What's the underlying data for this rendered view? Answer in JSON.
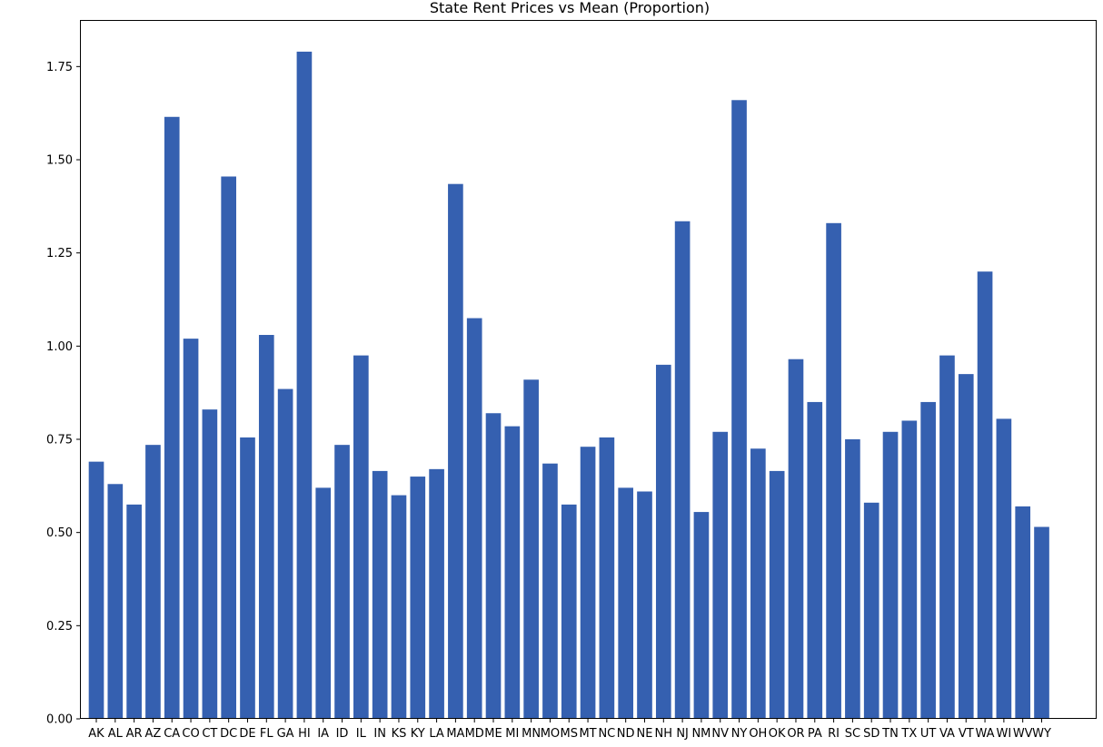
{
  "chart_data": {
    "type": "bar",
    "title": "State Rent Prices vs Mean (Proportion)",
    "xlabel": "",
    "ylabel": "",
    "ylim": [
      0,
      1.875
    ],
    "yticks": [
      "0.00",
      "0.25",
      "0.50",
      "0.75",
      "1.00",
      "1.25",
      "1.50",
      "1.75"
    ],
    "bar_color": "#3560B0",
    "grid": false,
    "categories": [
      "AK",
      "AL",
      "AR",
      "AZ",
      "CA",
      "CO",
      "CT",
      "DC",
      "DE",
      "FL",
      "GA",
      "HI",
      "IA",
      "ID",
      "IL",
      "IN",
      "KS",
      "KY",
      "LA",
      "MA",
      "MD",
      "ME",
      "MI",
      "MN",
      "MO",
      "MS",
      "MT",
      "NC",
      "ND",
      "NE",
      "NH",
      "NJ",
      "NM",
      "NV",
      "NY",
      "OH",
      "OK",
      "OR",
      "PA",
      "RI",
      "SC",
      "SD",
      "TN",
      "TX",
      "UT",
      "VA",
      "VT",
      "WA",
      "WI",
      "WV",
      "WY"
    ],
    "values": [
      0.69,
      0.63,
      0.575,
      0.735,
      1.615,
      1.02,
      0.83,
      1.455,
      0.755,
      1.03,
      0.885,
      1.79,
      0.62,
      0.735,
      0.975,
      0.665,
      0.6,
      0.65,
      0.67,
      1.435,
      1.075,
      0.82,
      0.785,
      0.91,
      0.685,
      0.575,
      0.73,
      0.755,
      0.62,
      0.61,
      0.95,
      1.335,
      0.555,
      0.77,
      1.66,
      0.725,
      0.665,
      0.965,
      0.85,
      1.33,
      0.75,
      0.58,
      0.77,
      0.8,
      0.85,
      0.975,
      0.925,
      1.2,
      0.805,
      0.57,
      0.515
    ]
  }
}
